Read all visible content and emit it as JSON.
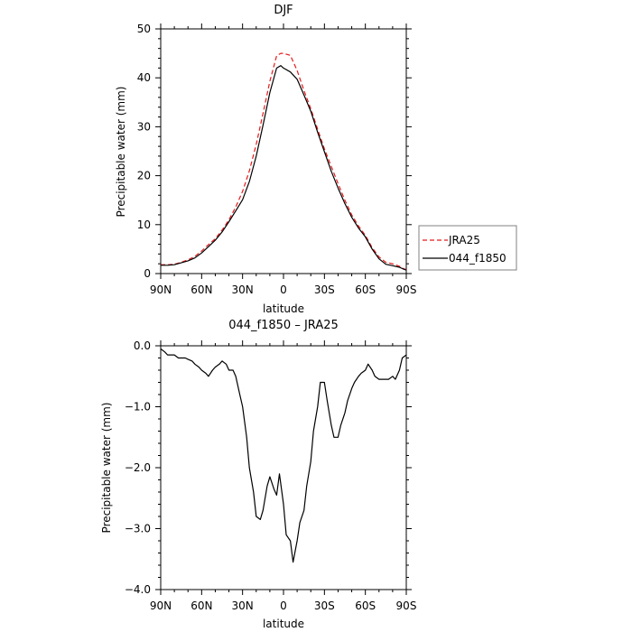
{
  "chart_data": [
    {
      "type": "line",
      "title": "DJF",
      "xlabel": "latitude",
      "ylabel": "Precipitable water (mm)",
      "xlim": [
        90,
        -90
      ],
      "ylim": [
        0,
        50
      ],
      "x_ticks": [
        {
          "value": 90,
          "label": "90N"
        },
        {
          "value": 60,
          "label": "60N"
        },
        {
          "value": 30,
          "label": "30N"
        },
        {
          "value": 0,
          "label": "0"
        },
        {
          "value": -30,
          "label": "30S"
        },
        {
          "value": -60,
          "label": "60S"
        },
        {
          "value": -90,
          "label": "90S"
        }
      ],
      "y_ticks": [
        0,
        10,
        20,
        30,
        40,
        50
      ],
      "legend_position": "right",
      "grid": false,
      "x_note": "latitude in degrees, positive = north",
      "series": [
        {
          "name": "JRA25",
          "color": "#e41a1c",
          "dash": "dashed",
          "x": [
            90,
            85,
            80,
            75,
            70,
            65,
            60,
            55,
            50,
            45,
            40,
            35,
            30,
            25,
            20,
            15,
            10,
            5,
            2,
            0,
            -5,
            -10,
            -15,
            -20,
            -25,
            -30,
            -35,
            -40,
            -45,
            -50,
            -55,
            -60,
            -65,
            -70,
            -75,
            -80,
            -85,
            -88,
            -90
          ],
          "values": [
            1.8,
            1.8,
            1.9,
            2.3,
            2.8,
            3.5,
            4.6,
            5.9,
            7.1,
            8.9,
            11.0,
            13.6,
            16.8,
            21.0,
            26.4,
            32.7,
            39.3,
            44.5,
            45.0,
            45.0,
            44.6,
            41.5,
            37.4,
            33.7,
            29.5,
            25.5,
            21.9,
            18.4,
            15.0,
            12.0,
            9.7,
            7.8,
            5.3,
            3.4,
            2.3,
            2.0,
            1.5,
            1.0,
            0.8
          ]
        },
        {
          "name": "044_f1850",
          "color": "#000000",
          "dash": "solid",
          "x": [
            90,
            85,
            80,
            75,
            70,
            65,
            60,
            55,
            50,
            45,
            40,
            35,
            30,
            25,
            20,
            15,
            10,
            5,
            2,
            0,
            -5,
            -10,
            -15,
            -20,
            -25,
            -30,
            -35,
            -40,
            -45,
            -50,
            -55,
            -60,
            -65,
            -70,
            -75,
            -80,
            -85,
            -88,
            -90
          ],
          "values": [
            1.7,
            1.7,
            1.8,
            2.2,
            2.6,
            3.2,
            4.2,
            5.5,
            6.8,
            8.5,
            10.6,
            12.8,
            15.1,
            18.8,
            24.0,
            30.3,
            37.0,
            42.0,
            42.5,
            42.0,
            41.2,
            39.7,
            36.5,
            33.2,
            28.9,
            24.9,
            20.9,
            17.5,
            14.3,
            11.5,
            9.3,
            7.5,
            5.0,
            3.0,
            1.9,
            1.6,
            1.3,
            0.9,
            0.7
          ]
        }
      ]
    },
    {
      "type": "line",
      "title": "044_f1850 – JRA25",
      "xlabel": "latitude",
      "ylabel": "Precipitable water (mm)",
      "xlim": [
        90,
        -90
      ],
      "ylim": [
        -4,
        0
      ],
      "x_ticks": [
        {
          "value": 90,
          "label": "90N"
        },
        {
          "value": 60,
          "label": "60N"
        },
        {
          "value": 30,
          "label": "30N"
        },
        {
          "value": 0,
          "label": "0"
        },
        {
          "value": -30,
          "label": "30S"
        },
        {
          "value": -60,
          "label": "60S"
        },
        {
          "value": -90,
          "label": "90S"
        }
      ],
      "y_ticks": [
        {
          "value": 0,
          "label": "0.0"
        },
        {
          "value": -1,
          "label": "−1.0"
        },
        {
          "value": -2,
          "label": "−2.0"
        },
        {
          "value": -3,
          "label": "−3.0"
        },
        {
          "value": -4,
          "label": "−4.0"
        }
      ],
      "grid": false,
      "series": [
        {
          "name": "044_f1850 – JRA25",
          "color": "#000000",
          "dash": "solid",
          "x": [
            90,
            87,
            85,
            82,
            80,
            77,
            75,
            72,
            70,
            67,
            65,
            62,
            60,
            57,
            55,
            52,
            50,
            47,
            45,
            42,
            40,
            37,
            35,
            32,
            30,
            27,
            25,
            22,
            20,
            17,
            15,
            12,
            10,
            7,
            5,
            3,
            0,
            -2,
            -5,
            -7,
            -10,
            -12,
            -15,
            -17,
            -20,
            -22,
            -25,
            -27,
            -30,
            -32,
            -35,
            -37,
            -40,
            -42,
            -45,
            -47,
            -50,
            -52,
            -55,
            -57,
            -60,
            -62,
            -65,
            -67,
            -70,
            -72,
            -75,
            -77,
            -80,
            -82,
            -85,
            -87,
            -90
          ],
          "values": [
            -0.05,
            -0.1,
            -0.15,
            -0.15,
            -0.15,
            -0.2,
            -0.2,
            -0.2,
            -0.22,
            -0.25,
            -0.3,
            -0.35,
            -0.4,
            -0.45,
            -0.5,
            -0.4,
            -0.35,
            -0.3,
            -0.25,
            -0.3,
            -0.4,
            -0.4,
            -0.5,
            -0.8,
            -1.0,
            -1.5,
            -2.0,
            -2.4,
            -2.8,
            -2.85,
            -2.7,
            -2.3,
            -2.15,
            -2.35,
            -2.45,
            -2.1,
            -2.6,
            -3.1,
            -3.2,
            -3.55,
            -3.2,
            -2.9,
            -2.7,
            -2.3,
            -1.9,
            -1.4,
            -1.0,
            -0.6,
            -0.6,
            -0.9,
            -1.3,
            -1.5,
            -1.5,
            -1.3,
            -1.1,
            -0.9,
            -0.7,
            -0.6,
            -0.5,
            -0.45,
            -0.4,
            -0.3,
            -0.4,
            -0.5,
            -0.55,
            -0.55,
            -0.55,
            -0.55,
            -0.5,
            -0.55,
            -0.4,
            -0.2,
            -0.15
          ]
        }
      ]
    }
  ]
}
